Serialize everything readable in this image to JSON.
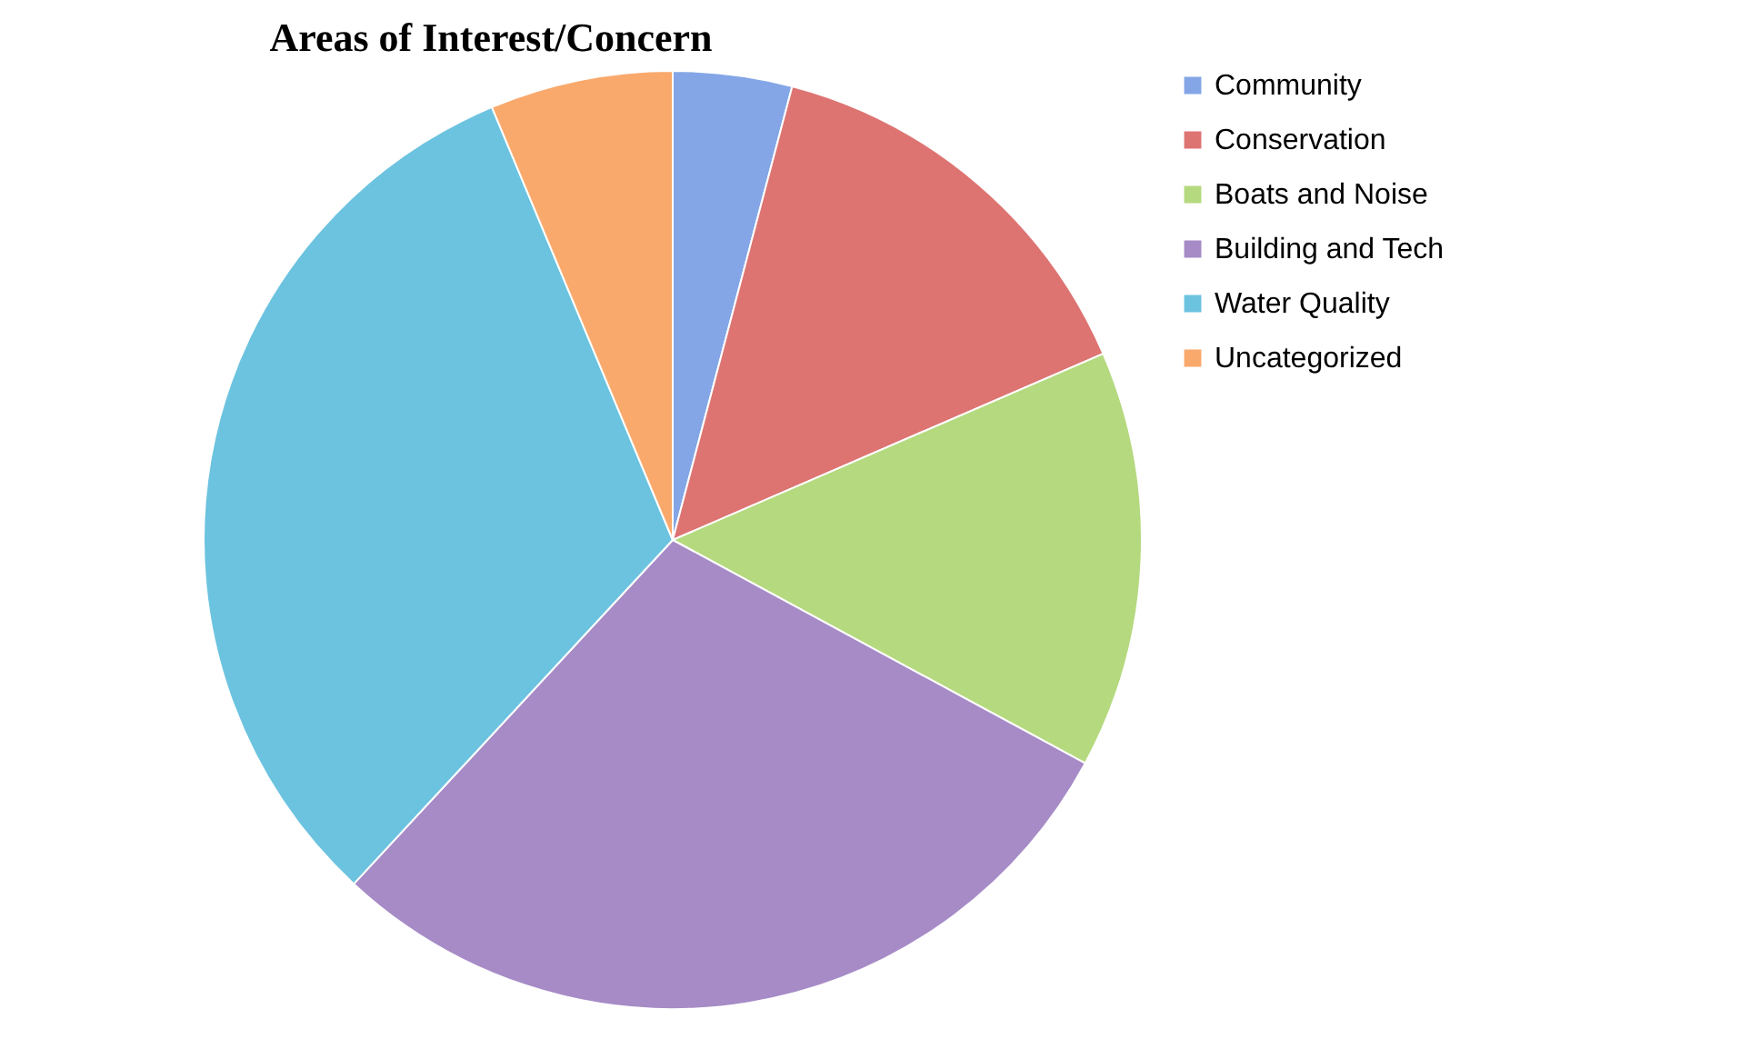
{
  "chart_data": {
    "type": "pie",
    "title": "Areas of Interest/Concern",
    "categories": [
      "Community",
      "Conservation",
      "Boats and Noise",
      "Building and Tech",
      "Water Quality",
      "Uncategorized"
    ],
    "values": [
      4.1,
      14.4,
      14.4,
      29.0,
      31.8,
      6.3
    ],
    "colors": [
      "#84a6e6",
      "#dd7472",
      "#b5d97f",
      "#a68bc6",
      "#6cc3e0",
      "#f9a96c"
    ],
    "legend": "right"
  }
}
